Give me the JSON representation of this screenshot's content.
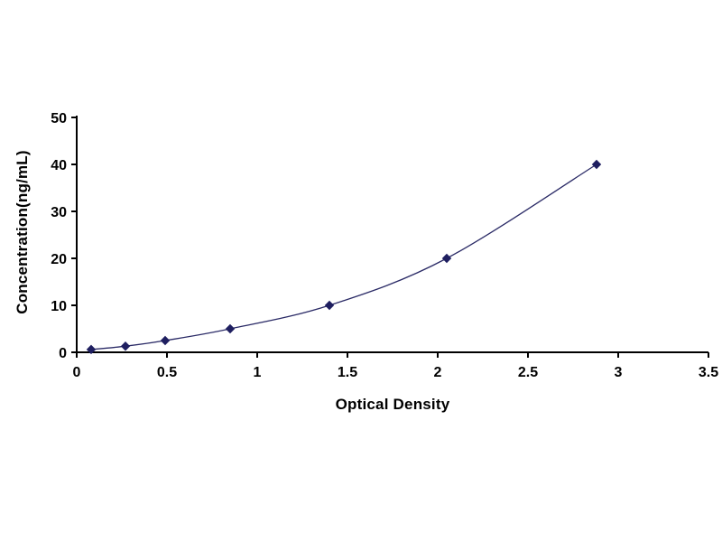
{
  "chart_data": {
    "type": "line",
    "title": "",
    "xlabel": "Optical Density",
    "ylabel": "Concentration(ng/mL)",
    "x": [
      0.08,
      0.27,
      0.49,
      0.85,
      1.4,
      2.05,
      2.88
    ],
    "y": [
      0.6,
      1.3,
      2.5,
      5,
      10,
      20,
      40
    ],
    "xlim": [
      0,
      3.5
    ],
    "ylim": [
      0,
      50
    ],
    "x_ticks": [
      0,
      0.5,
      1,
      1.5,
      2,
      2.5,
      3,
      3.5
    ],
    "x_tick_labels": [
      "0",
      "0.5",
      "1",
      "1.5",
      "2",
      "2.5",
      "3",
      "3.5"
    ],
    "y_ticks": [
      0,
      10,
      20,
      30,
      40,
      50
    ],
    "y_tick_labels": [
      "0",
      "10",
      "20",
      "30",
      "40",
      "50"
    ],
    "grid": false,
    "legend": "none",
    "marker": "diamond",
    "colors": {
      "axis": "#000000",
      "line": "#2a2a66",
      "marker": "#1f1f60"
    }
  }
}
